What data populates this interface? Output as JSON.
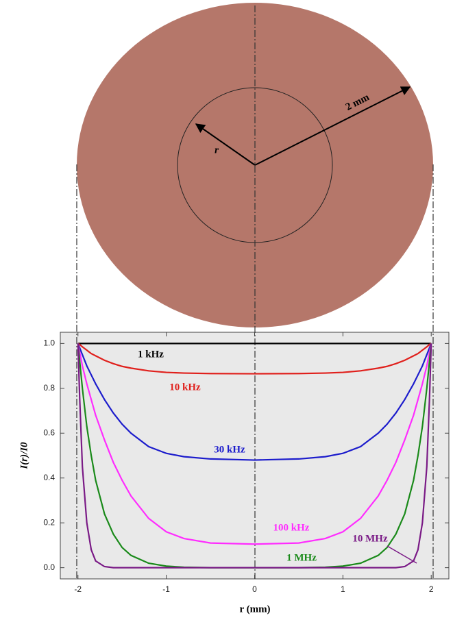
{
  "chart_data": {
    "type": "line",
    "diagram": {
      "radius_label": "2 mm",
      "r_label": "r"
    },
    "xlabel": "r (mm)",
    "ylabel": "I(r)/I0",
    "xlim": [
      -2.2,
      2.2
    ],
    "ylim": [
      -0.05,
      1.05
    ],
    "xticks": [
      -2,
      -1,
      0,
      1,
      2
    ],
    "yticks": [
      {
        "value": 0,
        "label": "0.0"
      },
      0.2,
      0.4,
      0.6,
      0.8,
      {
        "value": 1,
        "label": "1.0"
      }
    ],
    "x": [
      -2,
      -1.98,
      -1.95,
      -1.9,
      -1.85,
      -1.8,
      -1.7,
      -1.6,
      -1.5,
      -1.4,
      -1.2,
      -1,
      -0.8,
      -0.5,
      0,
      0.5,
      0.8,
      1,
      1.2,
      1.4,
      1.5,
      1.6,
      1.7,
      1.8,
      1.85,
      1.9,
      1.95,
      1.98,
      2
    ],
    "series": [
      {
        "name": "1 kHz",
        "color": "#000000",
        "values": [
          1,
          1,
          1,
          1,
          1,
          1,
          1,
          1,
          1,
          1,
          1,
          1,
          1,
          1,
          1,
          1,
          1,
          1,
          1,
          1,
          1,
          1,
          1,
          1,
          1,
          1,
          1,
          1,
          1
        ]
      },
      {
        "name": "10 kHz",
        "color": "#e0201c",
        "values": [
          1,
          0.995,
          0.985,
          0.97,
          0.955,
          0.945,
          0.925,
          0.91,
          0.898,
          0.89,
          0.878,
          0.871,
          0.868,
          0.866,
          0.865,
          0.866,
          0.868,
          0.871,
          0.878,
          0.89,
          0.898,
          0.91,
          0.925,
          0.945,
          0.955,
          0.97,
          0.985,
          0.995,
          1
        ]
      },
      {
        "name": "30 kHz",
        "color": "#1c1ccc",
        "values": [
          1,
          0.98,
          0.95,
          0.9,
          0.86,
          0.82,
          0.75,
          0.69,
          0.64,
          0.6,
          0.54,
          0.51,
          0.495,
          0.485,
          0.48,
          0.485,
          0.495,
          0.51,
          0.54,
          0.6,
          0.64,
          0.69,
          0.75,
          0.82,
          0.86,
          0.9,
          0.95,
          0.98,
          1
        ]
      },
      {
        "name": "100 kHz",
        "color": "#ff2cff",
        "values": [
          1,
          0.96,
          0.9,
          0.82,
          0.75,
          0.68,
          0.57,
          0.47,
          0.39,
          0.32,
          0.22,
          0.16,
          0.13,
          0.11,
          0.105,
          0.11,
          0.13,
          0.16,
          0.22,
          0.32,
          0.39,
          0.47,
          0.57,
          0.68,
          0.75,
          0.82,
          0.9,
          0.96,
          1
        ]
      },
      {
        "name": "1 MHz",
        "color": "#1a8a1a",
        "values": [
          1,
          0.92,
          0.8,
          0.63,
          0.5,
          0.39,
          0.24,
          0.15,
          0.09,
          0.055,
          0.02,
          0.007,
          0.002,
          0,
          0,
          0,
          0.002,
          0.007,
          0.02,
          0.055,
          0.09,
          0.15,
          0.24,
          0.39,
          0.5,
          0.63,
          0.8,
          0.92,
          1
        ]
      },
      {
        "name": "10 MHz",
        "color": "#7a1a86",
        "values": [
          1,
          0.75,
          0.45,
          0.2,
          0.08,
          0.03,
          0.005,
          0,
          0,
          0,
          0,
          0,
          0,
          0,
          0,
          0,
          0,
          0,
          0,
          0,
          0,
          0,
          0.005,
          0.03,
          0.08,
          0.2,
          0.45,
          0.75,
          1
        ]
      }
    ],
    "grid": false
  }
}
